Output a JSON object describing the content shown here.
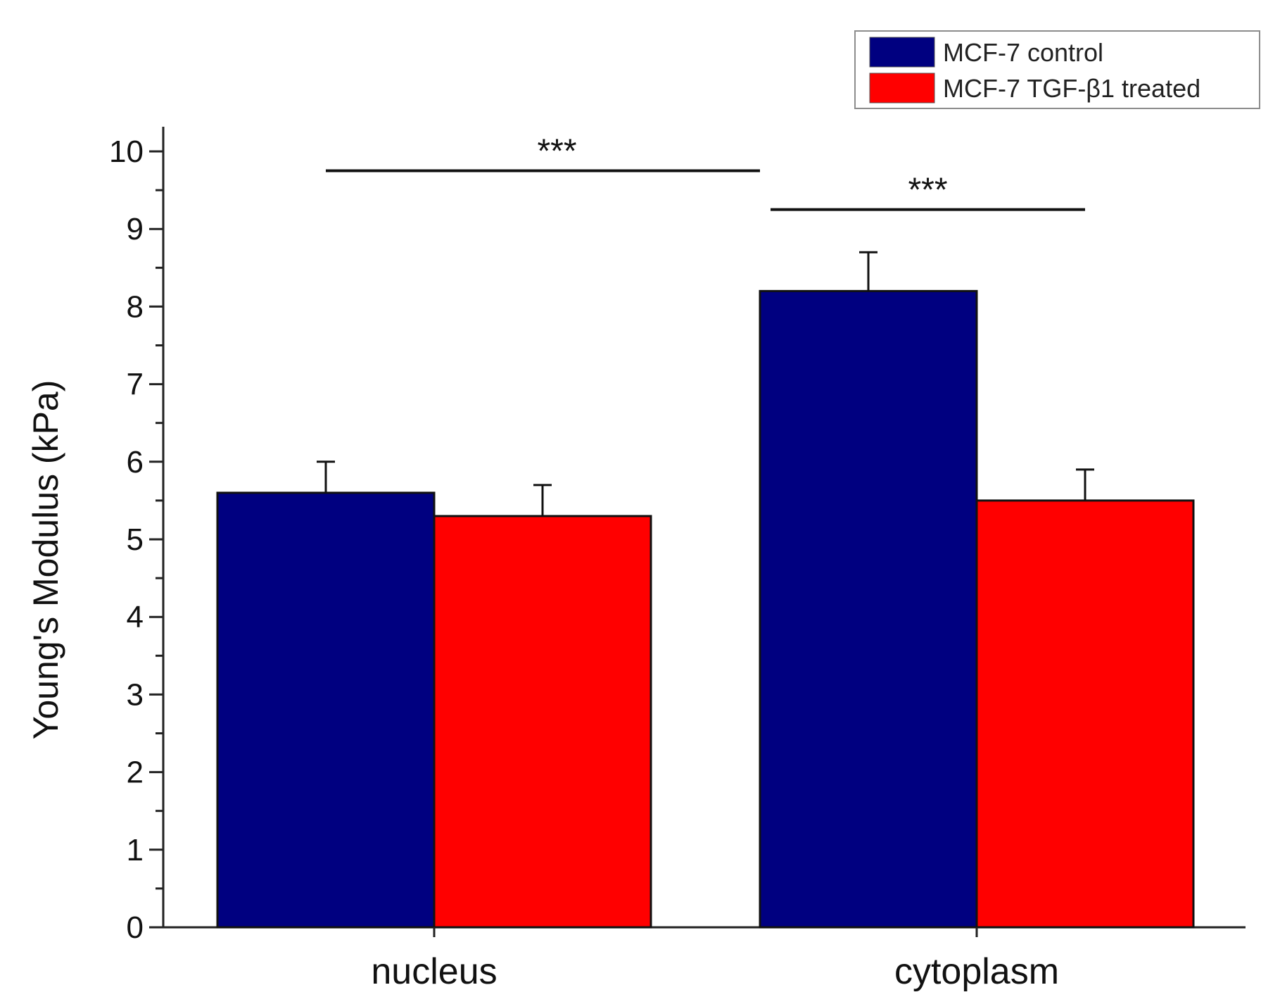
{
  "chart_data": {
    "type": "bar",
    "title": "",
    "xlabel": "",
    "ylabel": "Young's Modulus (kPa)",
    "categories": [
      "nucleus",
      "cytoplasm"
    ],
    "series": [
      {
        "name": "MCF-7 control",
        "color": "#000080",
        "values": [
          5.6,
          8.2
        ],
        "errors": [
          0.4,
          0.5
        ]
      },
      {
        "name": "MCF-7 TGF-β1 treated",
        "color": "#ff0000",
        "values": [
          5.3,
          5.5
        ],
        "errors": [
          0.4,
          0.4
        ]
      }
    ],
    "ylim": [
      0,
      10
    ],
    "yticks": [
      0,
      1,
      2,
      3,
      4,
      5,
      6,
      7,
      8,
      9,
      10
    ],
    "ytick_labels": [
      "0",
      "1",
      "2",
      "3",
      "4",
      "5",
      "6",
      "7",
      "8",
      "9",
      "10"
    ],
    "grid": false,
    "legend_position": "top-right",
    "significance": [
      {
        "label": "***",
        "from": "nucleus",
        "to": "cytoplasm / MCF-7 control",
        "level": 9.75
      },
      {
        "label": "***",
        "from": "cytoplasm / MCF-7 control",
        "to": "cytoplasm / MCF-7 TGF-β1 treated",
        "level": 9.25
      }
    ]
  }
}
